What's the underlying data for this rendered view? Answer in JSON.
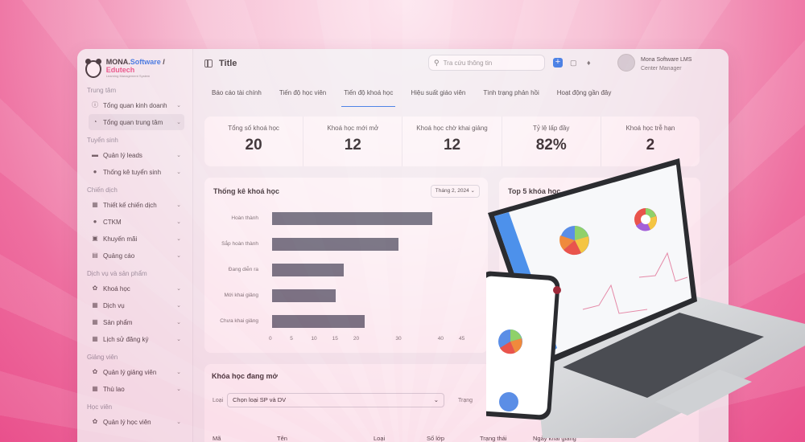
{
  "brand": {
    "name_a": "MONA.",
    "name_b": "Software",
    "sep": " / ",
    "name_c": "Edutech",
    "sub": "Learning Management System"
  },
  "topbar": {
    "title": "Title",
    "search_placeholder": "Tra cứu thông tin",
    "user_name": "Mona Software LMS",
    "user_role": "Center Manager"
  },
  "sidebar": {
    "sections": [
      {
        "title": "Trung tâm",
        "items": [
          {
            "label": "Tổng quan kinh doanh",
            "icon": "info-icon"
          },
          {
            "label": "Tổng quan trung tâm",
            "icon": "pie-icon",
            "active": true
          }
        ]
      },
      {
        "title": "Tuyển sinh",
        "items": [
          {
            "label": "Quản lý leads",
            "icon": "folder-icon"
          },
          {
            "label": "Thống kê tuyển sinh",
            "icon": "users-icon"
          }
        ]
      },
      {
        "title": "Chiến dịch",
        "items": [
          {
            "label": "Thiết kế chiến dịch",
            "icon": "grid-icon"
          },
          {
            "label": "CTKM",
            "icon": "users-icon"
          },
          {
            "label": "Khuyến mãi",
            "icon": "card-icon"
          },
          {
            "label": "Quảng cáo",
            "icon": "ad-icon"
          }
        ]
      },
      {
        "title": "Dịch vụ và sản phẩm",
        "items": [
          {
            "label": "Khoá học",
            "icon": "gear-icon"
          },
          {
            "label": "Dịch vụ",
            "icon": "grid-icon"
          },
          {
            "label": "Sản phẩm",
            "icon": "grid-icon"
          },
          {
            "label": "Lịch sử đăng ký",
            "icon": "grid-icon"
          }
        ]
      },
      {
        "title": "Giảng viên",
        "items": [
          {
            "label": "Quản lý giảng viên",
            "icon": "gear-icon"
          },
          {
            "label": "Thù lao",
            "icon": "grid-icon"
          }
        ]
      },
      {
        "title": "Học viên",
        "items": [
          {
            "label": "Quản lý học viên",
            "icon": "gear-icon"
          }
        ]
      }
    ]
  },
  "tabs": [
    "Báo cáo tài chính",
    "Tiến độ học viên",
    "Tiến độ khoá học",
    "Hiệu suất giáo viên",
    "Tình trạng phản hồi",
    "Hoạt động gần đây"
  ],
  "active_tab": 2,
  "stats": [
    {
      "label": "Tổng số khoá học",
      "value": "20"
    },
    {
      "label": "Khoá học mới mở",
      "value": "12"
    },
    {
      "label": "Khoá học chờ khai giảng",
      "value": "12"
    },
    {
      "label": "Tỷ lệ lấp đầy",
      "value": "82%"
    },
    {
      "label": "Khoá học trễ hạn",
      "value": "2"
    }
  ],
  "course_chart": {
    "title": "Thống kê khoá học",
    "month": "Tháng 2, 2024"
  },
  "top5": {
    "title": "Top 5 khóa học"
  },
  "chart_data": {
    "type": "bar",
    "orientation": "horizontal",
    "title": "Thống kê khoá học",
    "categories": [
      "Hoàn thành",
      "Sắp hoàn thành",
      "Đang diễn ra",
      "Mới khai giảng",
      "Chưa khai giảng"
    ],
    "values": [
      38,
      30,
      17,
      15,
      22
    ],
    "xlim": [
      0,
      45
    ],
    "xticks": [
      0,
      5,
      10,
      15,
      20,
      25,
      30,
      35,
      40,
      45
    ],
    "xtick_labels": [
      "0",
      "5",
      "10",
      "15",
      "20",
      "",
      "30",
      "",
      "40",
      "45"
    ],
    "bar_color": "#5b6472"
  },
  "open_courses": {
    "title": "Khóa học đang mở",
    "filter1_label": "Loại",
    "filter1_value": "Chọn loại SP và DV",
    "filter2_label": "Trạng",
    "columns": [
      "Mã",
      "Tên",
      "Loại",
      "Số lớp",
      "Trạng thái",
      "Ngày khai giảng"
    ]
  },
  "colors": {
    "accent": "#1e6ee8",
    "brand_pink": "#e8457e",
    "background": "#ee6fa0"
  }
}
